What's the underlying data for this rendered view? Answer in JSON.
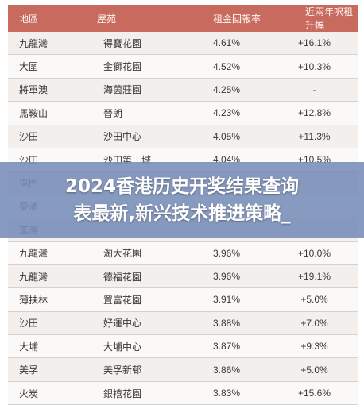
{
  "table": {
    "headers": [
      "地區",
      "屋苑",
      "租金回報率",
      "近兩年呎租升幅"
    ],
    "rows": [
      [
        "九龍灣",
        "得寶花園",
        "4.61%",
        "+16.1%"
      ],
      [
        "大圍",
        "金獅花園",
        "4.52%",
        "+10.3%"
      ],
      [
        "將軍澳",
        "海茵莊園",
        "4.25%",
        "-"
      ],
      [
        "馬鞍山",
        "晉朗",
        "4.23%",
        "+12.8%"
      ],
      [
        "沙田",
        "沙田中心",
        "4.05%",
        "+11.3%"
      ],
      [
        "沙田",
        "沙田第一城",
        "4.04%",
        "+10.5%"
      ],
      [
        "屯門",
        "",
        "",
        ""
      ],
      [
        "葵涌",
        "",
        "",
        ""
      ],
      [
        "荃灣",
        "",
        "",
        ""
      ],
      [
        "九龍灣",
        "淘大花園",
        "3.96%",
        "+10.0%"
      ],
      [
        "九龍灣",
        "德福花園",
        "3.96%",
        "+19.1%"
      ],
      [
        "薄扶林",
        "置富花園",
        "3.91%",
        "+5.0%"
      ],
      [
        "沙田",
        "好運中心",
        "3.88%",
        "+7.0%"
      ],
      [
        "大埔",
        "大埔中心",
        "3.87%",
        "+9.3%"
      ],
      [
        "美孚",
        "美孚新邨",
        "3.86%",
        "+5.0%"
      ],
      [
        "火炭",
        "銀禧花園",
        "3.83%",
        "+15.6%"
      ]
    ]
  },
  "overlay": {
    "line1": "2024香港历史开奖结果查询",
    "line2": "表最新,新兴技术推进策略_"
  }
}
